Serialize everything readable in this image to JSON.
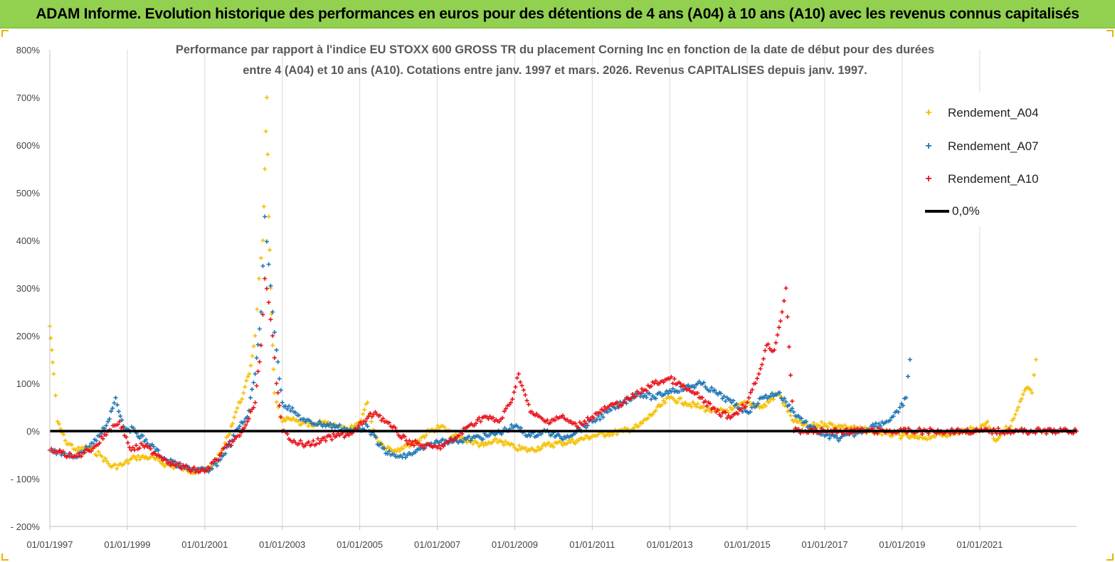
{
  "banner": {
    "title": "ADAM Informe. Evolution historique des performances en euros pour des détentions de 4 ans (A04) à 10 ans (A10) avec les revenus connus capitalisés"
  },
  "colors": {
    "banner_bg": "#92d050",
    "a04": "#f5c000",
    "a07": "#1f77b4",
    "a10": "#e8141c",
    "zero_line": "#000000",
    "grid": "#d9d9d9"
  },
  "chart_data": {
    "type": "scatter",
    "title_line1": "Performance par rapport à l'indice EU STOXX 600 GROSS TR  du placement Corning Inc en fonction de la date de début pour des durées",
    "title_line2": "entre 4 (A04) et 10 ans (A10). Cotations entre janv. 1997 et mars. 2026. Revenus CAPITALISES depuis janv. 1997.",
    "xlabel": "",
    "ylabel": "",
    "x_range": [
      1997.0,
      2023.5
    ],
    "ylim": [
      -200,
      800
    ],
    "y_ticks": [
      -200,
      -100,
      0,
      100,
      200,
      300,
      400,
      500,
      600,
      700,
      800
    ],
    "y_tick_labels": [
      "- 200%",
      "- 100%",
      "0%",
      "100%",
      "200%",
      "300%",
      "400%",
      "500%",
      "600%",
      "700%",
      "800%"
    ],
    "x_ticks": [
      1997,
      1999,
      2001,
      2003,
      2005,
      2007,
      2009,
      2011,
      2013,
      2015,
      2017,
      2019,
      2021
    ],
    "x_tick_labels": [
      "01/01/1997",
      "01/01/1999",
      "01/01/2001",
      "01/01/2003",
      "01/01/2005",
      "01/01/2007",
      "01/01/2009",
      "01/01/2011",
      "01/01/2013",
      "01/01/2015",
      "01/01/2017",
      "01/01/2019",
      "01/01/2021"
    ],
    "grid": "vertical",
    "legend_position": "top-right",
    "series": [
      {
        "name": "Rendement_A04",
        "marker": "+",
        "x": [
          1997.0,
          1997.05,
          1997.1,
          1997.2,
          1997.4,
          1997.7,
          1998.0,
          1998.3,
          1998.6,
          1998.9,
          1999.2,
          1999.6,
          2000.0,
          2000.4,
          2000.8,
          2001.1,
          2001.4,
          2001.6,
          2001.8,
          2002.0,
          2002.15,
          2002.3,
          2002.4,
          2002.5,
          2002.55,
          2002.6,
          2002.65,
          2002.7,
          2002.75,
          2002.8,
          2002.9,
          2003.0,
          2003.2,
          2003.5,
          2003.8,
          2004.1,
          2004.4,
          2004.7,
          2005.0,
          2005.2,
          2005.3,
          2005.4,
          2005.6,
          2005.9,
          2006.2,
          2006.5,
          2006.8,
          2007.1,
          2007.4,
          2007.8,
          2008.2,
          2008.6,
          2009.0,
          2009.4,
          2009.8,
          2010.2,
          2010.6,
          2011.0,
          2011.4,
          2011.8,
          2012.2,
          2012.6,
          2013.0,
          2013.4,
          2013.8,
          2014.2,
          2014.6,
          2015.0,
          2015.4,
          2015.8,
          2016.2,
          2016.6,
          2017.0,
          2017.4,
          2017.8,
          2018.2,
          2018.6,
          2019.0,
          2019.4,
          2019.8,
          2020.2,
          2020.6,
          2021.0,
          2021.2,
          2021.4,
          2021.6,
          2021.8,
          2022.0,
          2022.2,
          2022.35,
          2022.45
        ],
        "y": [
          220,
          170,
          120,
          20,
          -20,
          -40,
          -35,
          -50,
          -75,
          -70,
          -55,
          -55,
          -70,
          -78,
          -85,
          -80,
          -50,
          -10,
          40,
          80,
          120,
          200,
          320,
          400,
          550,
          700,
          450,
          300,
          180,
          80,
          50,
          20,
          25,
          15,
          10,
          20,
          10,
          0,
          20,
          60,
          20,
          -10,
          -30,
          -40,
          -30,
          -20,
          0,
          10,
          -10,
          -20,
          -30,
          -20,
          -35,
          -40,
          -30,
          -25,
          -20,
          -10,
          -5,
          0,
          10,
          40,
          70,
          60,
          50,
          40,
          45,
          60,
          50,
          80,
          20,
          10,
          15,
          10,
          5,
          0,
          -5,
          -10,
          -15,
          -10,
          -5,
          0,
          5,
          20,
          -20,
          0,
          10,
          50,
          90,
          80,
          150
        ]
      },
      {
        "name": "Rendement_A07",
        "marker": "+",
        "x": [
          1997.0,
          1997.3,
          1997.6,
          1997.9,
          1998.2,
          1998.5,
          1998.7,
          1998.9,
          1999.2,
          1999.6,
          2000.0,
          2000.4,
          2000.8,
          2001.1,
          2001.4,
          2001.7,
          2001.9,
          2002.1,
          2002.3,
          2002.45,
          2002.55,
          2002.65,
          2002.75,
          2002.85,
          2003.0,
          2003.3,
          2003.6,
          2004.0,
          2004.4,
          2004.8,
          2005.2,
          2005.5,
          2005.8,
          2006.1,
          2006.4,
          2006.8,
          2007.1,
          2007.5,
          2007.9,
          2008.3,
          2008.7,
          2009.0,
          2009.4,
          2009.8,
          2010.2,
          2010.6,
          2011.0,
          2011.4,
          2011.8,
          2012.2,
          2012.6,
          2013.0,
          2013.4,
          2013.8,
          2014.2,
          2014.6,
          2015.0,
          2015.4,
          2015.8,
          2016.2,
          2016.6,
          2017.0,
          2017.4,
          2017.8,
          2018.2,
          2018.6,
          2018.9,
          2019.1,
          2019.2
        ],
        "y": [
          -40,
          -50,
          -55,
          -40,
          -20,
          20,
          70,
          10,
          0,
          -30,
          -60,
          -75,
          -80,
          -85,
          -60,
          -20,
          10,
          30,
          120,
          250,
          450,
          350,
          250,
          170,
          60,
          40,
          20,
          15,
          10,
          0,
          10,
          -30,
          -50,
          -55,
          -45,
          -30,
          -20,
          -20,
          -15,
          -10,
          0,
          10,
          -10,
          0,
          -15,
          0,
          20,
          40,
          60,
          80,
          70,
          85,
          90,
          100,
          80,
          60,
          40,
          70,
          80,
          40,
          10,
          -10,
          -15,
          -5,
          10,
          20,
          40,
          70,
          150
        ]
      },
      {
        "name": "Rendement_A10",
        "marker": "+",
        "x": [
          1997.0,
          1997.3,
          1997.6,
          1997.9,
          1998.2,
          1998.5,
          1998.8,
          1999.1,
          1999.4,
          1999.8,
          2000.2,
          2000.6,
          2001.0,
          2001.3,
          2001.6,
          2001.9,
          2002.1,
          2002.3,
          2002.45,
          2002.55,
          2002.65,
          2002.75,
          2002.85,
          2003.0,
          2003.3,
          2003.6,
          2004.0,
          2004.4,
          2004.8,
          2005.1,
          2005.4,
          2005.8,
          2006.2,
          2006.6,
          2007.0,
          2007.4,
          2007.8,
          2008.2,
          2008.6,
          2008.9,
          2009.1,
          2009.4,
          2009.8,
          2010.2,
          2010.6,
          2011.0,
          2011.4,
          2011.8,
          2012.2,
          2012.6,
          2013.0,
          2013.4,
          2013.8,
          2014.2,
          2014.6,
          2015.0,
          2015.3,
          2015.5,
          2015.7,
          2015.9,
          2016.0,
          2016.2,
          2016.5,
          2017.0,
          2018.0,
          2019.0,
          2020.0,
          2021.0,
          2022.0,
          2023.0,
          2023.5
        ],
        "y": [
          -40,
          -45,
          -55,
          -45,
          -30,
          0,
          20,
          -40,
          -30,
          -50,
          -70,
          -80,
          -85,
          -60,
          -30,
          -10,
          20,
          60,
          180,
          320,
          270,
          200,
          100,
          0,
          -20,
          -30,
          -20,
          -10,
          -5,
          20,
          40,
          10,
          -20,
          -30,
          -35,
          -20,
          10,
          30,
          20,
          60,
          120,
          40,
          20,
          30,
          10,
          30,
          50,
          60,
          80,
          100,
          110,
          90,
          70,
          40,
          30,
          60,
          120,
          180,
          170,
          250,
          300,
          0,
          0,
          0,
          0,
          0,
          0,
          0,
          0,
          0,
          0
        ]
      }
    ]
  },
  "legend": {
    "a04_label": "Rendement_A04",
    "a07_label": "Rendement_A07",
    "a10_label": "Rendement_A10",
    "zero_label": "0,0%",
    "marker_symbol": "+"
  }
}
